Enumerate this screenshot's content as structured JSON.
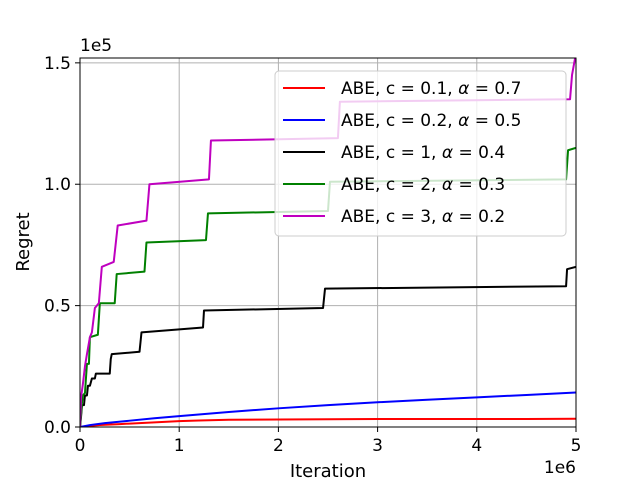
{
  "chart_data": {
    "type": "line",
    "xlabel": "Iteration",
    "ylabel": "Regret",
    "x_exponent_label": "1e6",
    "y_exponent_label": "1e5",
    "xlim": [
      0,
      5
    ],
    "ylim": [
      0,
      1.52
    ],
    "x_ticks": [
      0,
      1,
      2,
      3,
      4,
      5
    ],
    "x_tick_labels": [
      "0",
      "1",
      "2",
      "3",
      "4",
      "5"
    ],
    "y_ticks": [
      0.0,
      0.5,
      1.0,
      1.5
    ],
    "y_tick_labels": [
      "0.0",
      "0.5",
      "1.0",
      "1.5"
    ],
    "grid": true,
    "legend_position": "top-right",
    "series": [
      {
        "name": "ABE, c = 0.1, α = 0.7",
        "legend_prefix": "ABE, c = 0.1, ",
        "legend_alpha": "α",
        "legend_suffix": " = 0.7",
        "color": "#ff0000",
        "x": [
          0,
          0.1,
          0.2,
          0.4,
          0.6,
          0.8,
          1.0,
          1.2,
          1.5,
          2.0,
          2.5,
          3.0,
          3.5,
          4.0,
          4.5,
          5.0
        ],
        "y": [
          0,
          0.005,
          0.008,
          0.012,
          0.016,
          0.02,
          0.024,
          0.027,
          0.03,
          0.031,
          0.032,
          0.033,
          0.033,
          0.033,
          0.033,
          0.034
        ]
      },
      {
        "name": "ABE, c = 0.2, α = 0.5",
        "legend_prefix": "ABE, c = 0.2, ",
        "legend_alpha": "α",
        "legend_suffix": " = 0.5",
        "color": "#0000ff",
        "x": [
          0,
          0.1,
          0.25,
          0.5,
          0.75,
          1.0,
          1.5,
          2.0,
          2.5,
          3.0,
          3.5,
          4.0,
          4.5,
          5.0
        ],
        "y": [
          0,
          0.008,
          0.016,
          0.026,
          0.036,
          0.045,
          0.062,
          0.077,
          0.09,
          0.102,
          0.112,
          0.122,
          0.132,
          0.142
        ]
      },
      {
        "name": "ABE, c = 1, α = 0.4",
        "legend_prefix": "ABE, c = 1, ",
        "legend_alpha": "α",
        "legend_suffix": " = 0.4",
        "color": "#000000",
        "x": [
          0,
          0.01,
          0.02,
          0.04,
          0.05,
          0.07,
          0.08,
          0.1,
          0.12,
          0.15,
          0.16,
          0.3,
          0.31,
          0.32,
          0.6,
          0.62,
          1.24,
          1.25,
          2.45,
          2.47,
          4.9,
          4.91,
          5.0
        ],
        "y": [
          0,
          0.04,
          0.09,
          0.09,
          0.13,
          0.13,
          0.17,
          0.17,
          0.2,
          0.2,
          0.22,
          0.22,
          0.28,
          0.3,
          0.31,
          0.39,
          0.41,
          0.48,
          0.49,
          0.57,
          0.58,
          0.65,
          0.66
        ]
      },
      {
        "name": "ABE, c = 2, α = 0.3",
        "legend_prefix": "ABE, c = 2, ",
        "legend_alpha": "α",
        "legend_suffix": " = 0.3",
        "color": "#008000",
        "x": [
          0,
          0.02,
          0.03,
          0.05,
          0.07,
          0.09,
          0.1,
          0.18,
          0.2,
          0.35,
          0.37,
          0.65,
          0.67,
          1.27,
          1.29,
          2.5,
          2.52,
          4.9,
          4.92,
          5.0
        ],
        "y": [
          0,
          0.1,
          0.13,
          0.14,
          0.26,
          0.26,
          0.37,
          0.38,
          0.51,
          0.51,
          0.63,
          0.64,
          0.76,
          0.77,
          0.88,
          0.89,
          1.01,
          1.02,
          1.14,
          1.15
        ]
      },
      {
        "name": "ABE, c = 3, α = 0.2",
        "legend_prefix": "ABE, c = 3, ",
        "legend_alpha": "α",
        "legend_suffix": " = 0.2",
        "color": "#bf00bf",
        "x": [
          0,
          0.01,
          0.03,
          0.05,
          0.07,
          0.1,
          0.12,
          0.15,
          0.19,
          0.22,
          0.34,
          0.38,
          0.67,
          0.7,
          1.3,
          1.32,
          2.6,
          2.62,
          4.94,
          4.96,
          5.0
        ],
        "y": [
          0,
          0.12,
          0.18,
          0.25,
          0.3,
          0.37,
          0.39,
          0.49,
          0.51,
          0.66,
          0.68,
          0.83,
          0.85,
          1.0,
          1.02,
          1.18,
          1.19,
          1.34,
          1.35,
          1.45,
          1.54
        ]
      }
    ]
  }
}
